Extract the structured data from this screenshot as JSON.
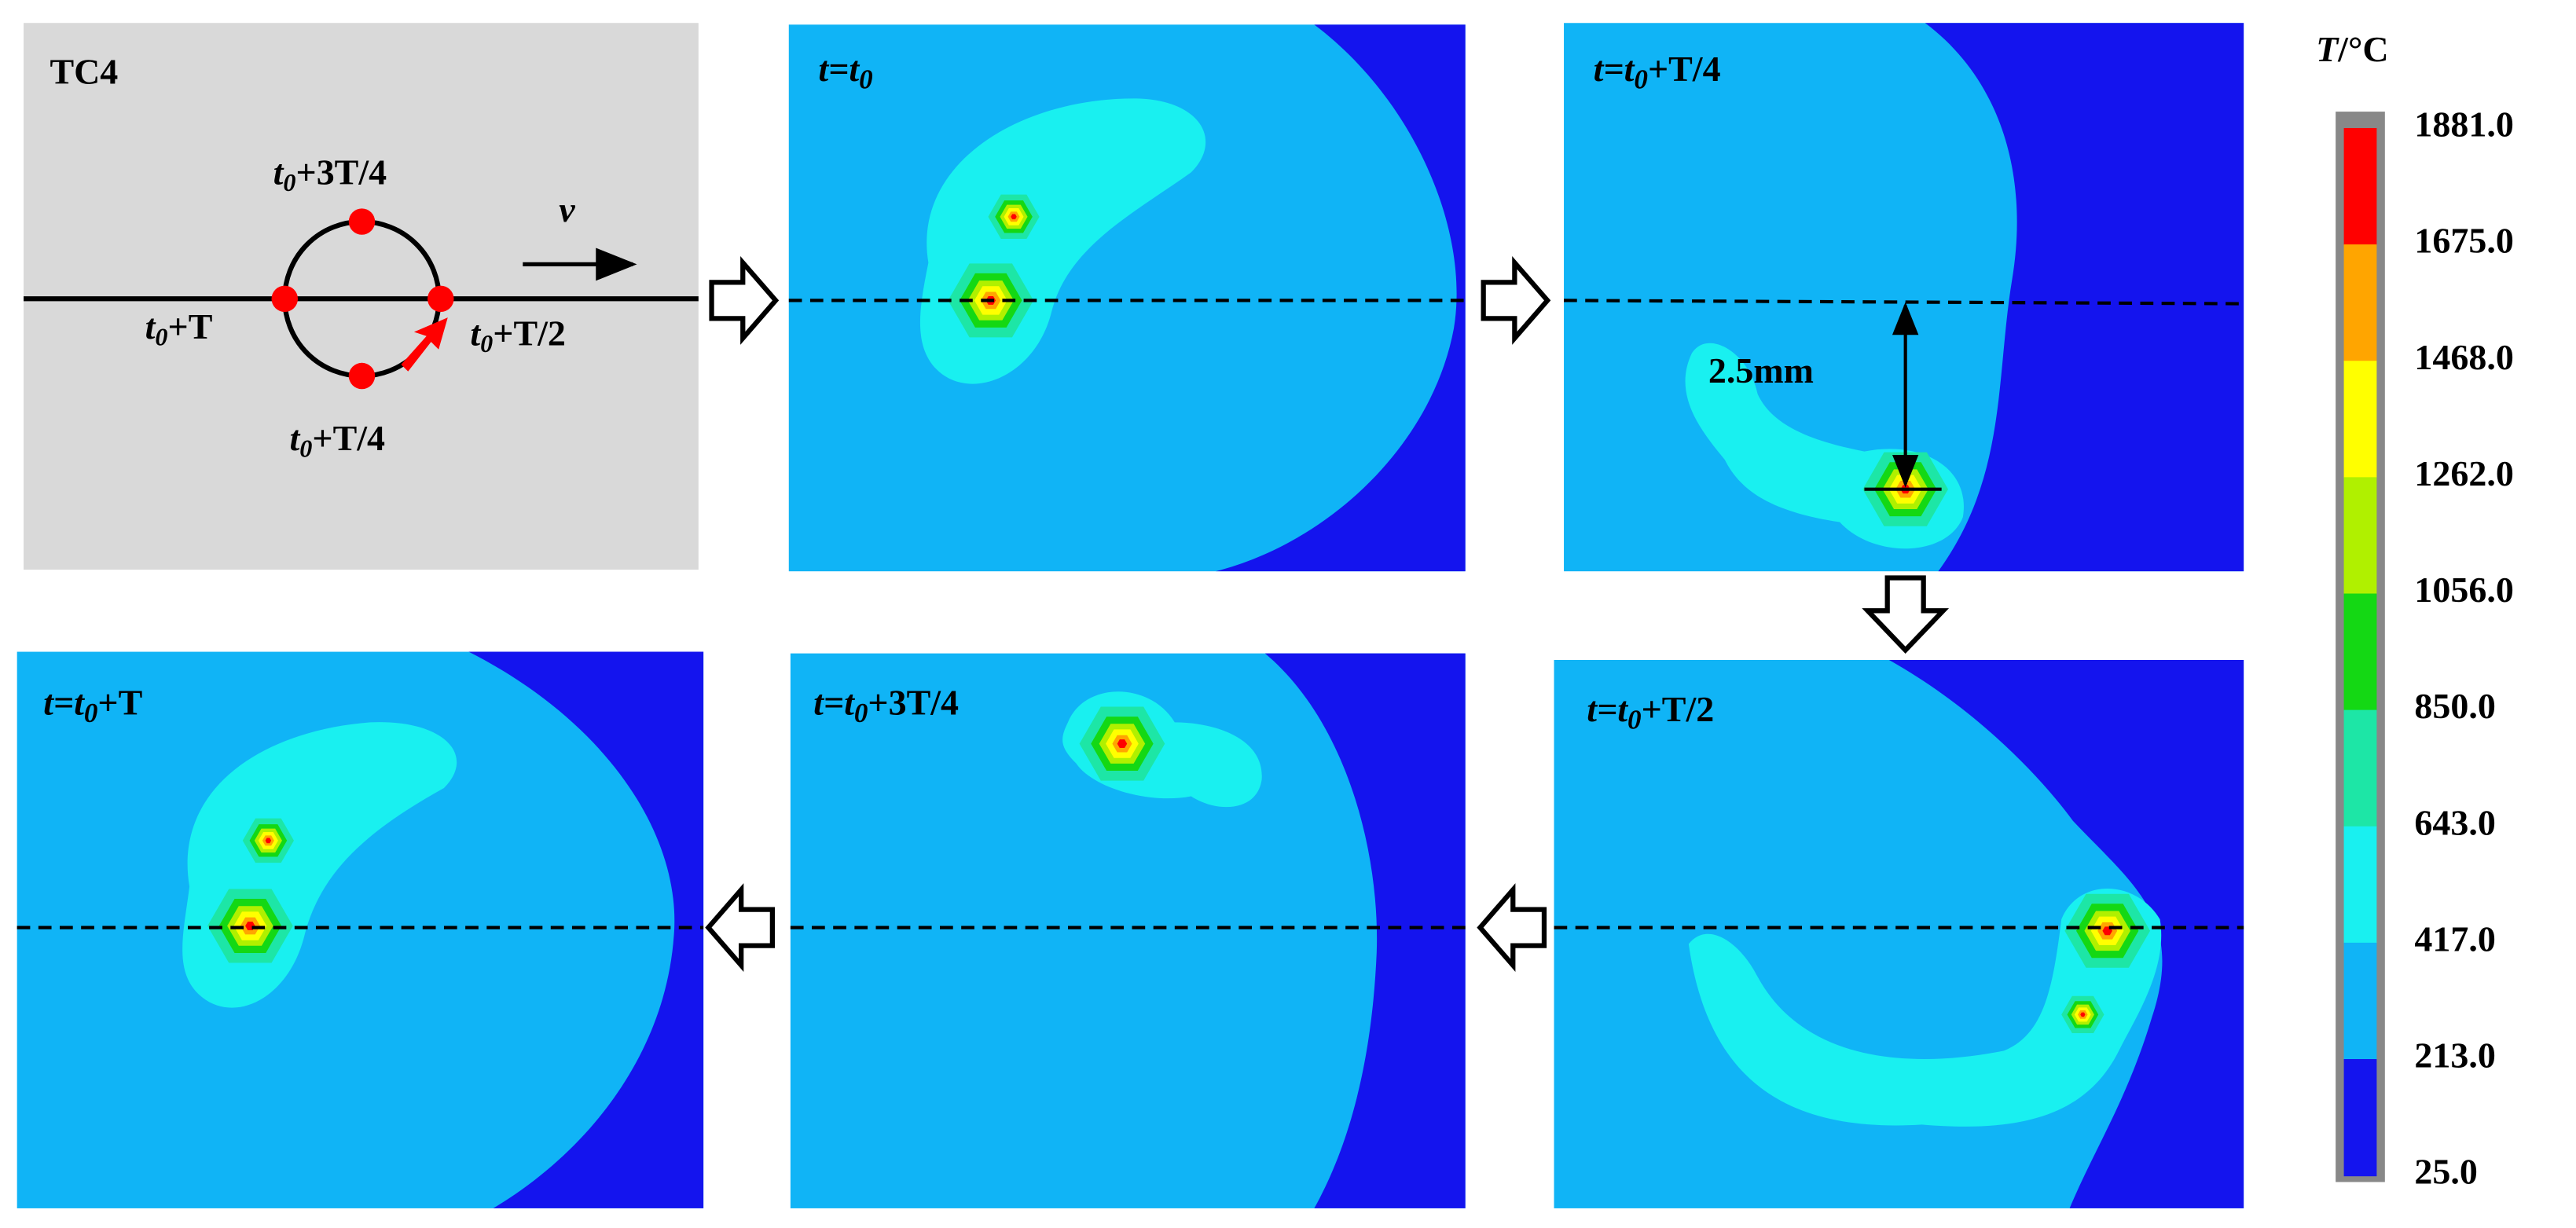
{
  "figure": {
    "schematic": {
      "material": "TC4",
      "velocity": "v",
      "points": [
        {
          "pre": "t",
          "sub": "0",
          "post": "+3T/4"
        },
        {
          "pre": "t",
          "sub": "0",
          "post": "+T"
        },
        {
          "pre": "t",
          "sub": "0",
          "post": "+T/2"
        },
        {
          "pre": "t",
          "sub": "0",
          "post": "+T/4"
        }
      ]
    },
    "panels": [
      {
        "pre": "t=t",
        "sub": "0",
        "post": ""
      },
      {
        "pre": "t=t",
        "sub": "0",
        "post": "+T/4"
      },
      {
        "pre": "t=t",
        "sub": "0",
        "post": "+T/2"
      },
      {
        "pre": "t=t",
        "sub": "0",
        "post": "+3T/4"
      },
      {
        "pre": "t=t",
        "sub": "0",
        "post": "+T"
      }
    ],
    "annotation": "2.5mm",
    "colorbar": {
      "symbol": "T",
      "unit": "/°C",
      "labels": [
        "1881.0",
        "1675.0",
        "1468.0",
        "1262.0",
        "1056.0",
        "850.0",
        "643.0",
        "417.0",
        "213.0",
        "25.0"
      ]
    }
  }
}
